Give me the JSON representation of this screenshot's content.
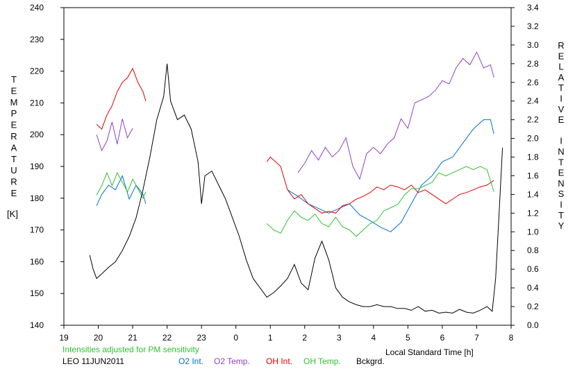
{
  "chart_data": {
    "type": "line",
    "xlabel": "Local Standard Time [h]",
    "ylabel": "TEMPERATURE",
    "ylabel_unit": "[K]",
    "y2label": "RELATIVE INTENSITY",
    "x_ticks": [
      "19",
      "20",
      "21",
      "22",
      "23",
      "0",
      "1",
      "2",
      "3",
      "4",
      "5",
      "6",
      "7",
      "8"
    ],
    "y_ticks": [
      "240",
      "230",
      "220",
      "210",
      "200",
      "190",
      "180",
      "170",
      "160",
      "150",
      "140"
    ],
    "y2_ticks": [
      "3.4",
      "3.2",
      "3.0",
      "2.8",
      "2.6",
      "2.4",
      "2.2",
      "2.0",
      "1.8",
      "1.6",
      "1.4",
      "1.2",
      "1.0",
      "0.8",
      "0.6",
      "0.4",
      "0.2",
      "0.0"
    ],
    "xlim": [
      19,
      32
    ],
    "ylim": [
      140,
      240
    ],
    "y2lim": [
      0,
      3.4
    ],
    "note": "Intensities adjusted for PM sensitivity",
    "station_label": "LEO 11JUN2011",
    "series": [
      {
        "name": "O2 Int.",
        "color": "#0070d0",
        "axis": "right",
        "segments": [
          {
            "x": [
              19.95,
              20.1,
              20.3,
              20.5,
              20.7,
              20.9,
              21.1,
              21.3,
              21.38
            ],
            "y": [
              1.28,
              1.4,
              1.5,
              1.45,
              1.6,
              1.35,
              1.5,
              1.4,
              1.3
            ]
          },
          {
            "x": [
              25.5,
              25.8,
              26.1,
              26.4,
              26.7,
              27.0,
              27.3,
              27.6,
              27.9,
              28.2,
              28.5,
              28.8,
              29.1,
              29.4,
              29.7,
              30.0,
              30.3,
              30.6,
              30.9,
              31.2,
              31.4,
              31.5
            ],
            "y": [
              1.45,
              1.38,
              1.3,
              1.25,
              1.2,
              1.25,
              1.3,
              1.18,
              1.12,
              1.05,
              1.0,
              1.1,
              1.3,
              1.5,
              1.6,
              1.75,
              1.8,
              1.95,
              2.1,
              2.2,
              2.2,
              2.05
            ]
          }
        ]
      },
      {
        "name": "O2 Temp.",
        "color": "#9040c0",
        "axis": "left",
        "segments": [
          {
            "x": [
              19.95,
              20.1,
              20.25,
              20.4,
              20.55,
              20.7,
              20.85,
              21.0
            ],
            "y": [
              200,
              195,
              198,
              204,
              197,
              205,
              199,
              202
            ]
          },
          {
            "x": [
              25.8,
              26.0,
              26.2,
              26.4,
              26.6,
              26.8,
              27.0,
              27.2,
              27.4,
              27.6,
              27.8,
              28.0,
              28.2,
              28.4,
              28.6,
              28.8,
              29.0,
              29.2,
              29.4,
              29.6,
              29.8,
              30.0,
              30.2,
              30.4,
              30.6,
              30.8,
              31.0,
              31.2,
              31.4,
              31.5
            ],
            "y": [
              188,
              191,
              195,
              192,
              196,
              193,
              195,
              199,
              190,
              186,
              194,
              196,
              194,
              197,
              199,
              205,
              202,
              210,
              211,
              212,
              214,
              217,
              216,
              221,
              224,
              222,
              226,
              221,
              222,
              218
            ]
          }
        ]
      },
      {
        "name": "OH Int.",
        "color": "#e00000",
        "axis": "right",
        "segments": [
          {
            "x": [
              19.95,
              20.1,
              20.25,
              20.4,
              20.55,
              20.7,
              20.85,
              21.0,
              21.15,
              21.3,
              21.38
            ],
            "y": [
              2.15,
              2.1,
              2.25,
              2.35,
              2.5,
              2.6,
              2.65,
              2.75,
              2.6,
              2.5,
              2.4
            ]
          },
          {
            "x": [
              24.9,
              25.0,
              25.15,
              25.3,
              25.5,
              25.7,
              25.9,
              26.1,
              26.3,
              26.5,
              26.7,
              26.9,
              27.1,
              27.3,
              27.5,
              27.7,
              27.9,
              28.1,
              28.3,
              28.5,
              28.7,
              28.9,
              29.1,
              29.3,
              29.5,
              29.7,
              29.9,
              30.1,
              30.3,
              30.5,
              30.7,
              30.9,
              31.1,
              31.3,
              31.5
            ],
            "y": [
              1.75,
              1.8,
              1.75,
              1.7,
              1.45,
              1.35,
              1.4,
              1.3,
              1.25,
              1.2,
              1.22,
              1.2,
              1.28,
              1.3,
              1.35,
              1.38,
              1.42,
              1.48,
              1.45,
              1.5,
              1.48,
              1.45,
              1.5,
              1.42,
              1.45,
              1.4,
              1.35,
              1.3,
              1.35,
              1.4,
              1.42,
              1.45,
              1.48,
              1.5,
              1.55
            ]
          }
        ]
      },
      {
        "name": "OH Temp.",
        "color": "#30c030",
        "axis": "left",
        "segments": [
          {
            "x": [
              19.95,
              20.1,
              20.25,
              20.4,
              20.55,
              20.7,
              20.85,
              21.0,
              21.15,
              21.3,
              21.38
            ],
            "y": [
              181,
              184,
              188,
              184,
              188,
              185,
              182,
              186,
              183,
              180,
              182
            ]
          },
          {
            "x": [
              24.9,
              25.1,
              25.3,
              25.5,
              25.7,
              25.9,
              26.1,
              26.3,
              26.5,
              26.7,
              26.9,
              27.1,
              27.3,
              27.5,
              27.7,
              27.9,
              28.1,
              28.3,
              28.5,
              28.7,
              28.9,
              29.1,
              29.3,
              29.5,
              29.7,
              29.9,
              30.1,
              30.3,
              30.5,
              30.7,
              30.9,
              31.1,
              31.3,
              31.5
            ],
            "y": [
              172,
              170,
              169,
              173,
              176,
              174,
              173,
              175,
              172,
              171,
              174,
              171,
              170,
              168,
              170,
              172,
              173,
              176,
              177,
              178,
              181,
              183,
              183,
              184,
              185,
              188,
              187,
              188,
              189,
              190,
              189,
              190,
              189,
              182
            ]
          }
        ]
      },
      {
        "name": "Bckgrd.",
        "color": "#000000",
        "axis": "right",
        "segments": [
          {
            "x": [
              19.75,
              19.85,
              19.95,
              20.1,
              20.3,
              20.5,
              20.7,
              20.9,
              21.1,
              21.3,
              21.5,
              21.7,
              21.9,
              22.0,
              22.1,
              22.3,
              22.5,
              22.7,
              22.9,
              23.0,
              23.1,
              23.3,
              23.5,
              23.7,
              23.9,
              24.1,
              24.3,
              24.5,
              24.7,
              24.9,
              25.1,
              25.3,
              25.5,
              25.7,
              25.9,
              26.1,
              26.3,
              26.5,
              26.7,
              26.9,
              27.1,
              27.3,
              27.5,
              27.7,
              27.9,
              28.1,
              28.3,
              28.5,
              28.7,
              28.9,
              29.1,
              29.3,
              29.5,
              29.7,
              29.9,
              30.1,
              30.3,
              30.5,
              30.7,
              30.9,
              31.1,
              31.3,
              31.45,
              31.55,
              31.65,
              31.75
            ],
            "y": [
              0.75,
              0.6,
              0.5,
              0.55,
              0.62,
              0.68,
              0.8,
              0.95,
              1.15,
              1.45,
              1.8,
              2.2,
              2.45,
              2.8,
              2.4,
              2.2,
              2.25,
              2.1,
              1.75,
              1.3,
              1.6,
              1.65,
              1.5,
              1.35,
              1.15,
              0.95,
              0.7,
              0.5,
              0.4,
              0.3,
              0.35,
              0.42,
              0.5,
              0.65,
              0.45,
              0.38,
              0.72,
              0.9,
              0.7,
              0.4,
              0.3,
              0.25,
              0.22,
              0.2,
              0.2,
              0.22,
              0.2,
              0.2,
              0.18,
              0.18,
              0.16,
              0.2,
              0.15,
              0.16,
              0.13,
              0.14,
              0.13,
              0.17,
              0.14,
              0.13,
              0.16,
              0.2,
              0.15,
              0.5,
              1.2,
              1.9
            ]
          }
        ]
      }
    ]
  }
}
